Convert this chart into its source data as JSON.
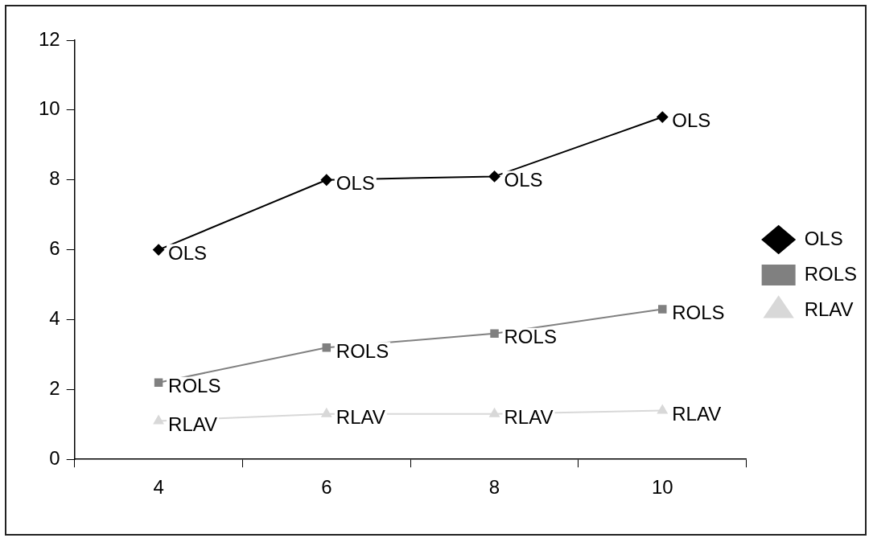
{
  "chart_data": {
    "type": "line",
    "categories": [
      "4",
      "6",
      "8",
      "10"
    ],
    "series": [
      {
        "name": "OLS",
        "color": "#000000",
        "marker": "diamond",
        "values": [
          6,
          8,
          8.1,
          9.8
        ]
      },
      {
        "name": "ROLS",
        "color": "#808080",
        "marker": "square",
        "values": [
          2.2,
          3.2,
          3.6,
          4.3
        ]
      },
      {
        "name": "RLAV",
        "color": "#d8d8d8",
        "marker": "triangle",
        "values": [
          1.1,
          1.3,
          1.3,
          1.4
        ]
      }
    ],
    "ylim": [
      0,
      12
    ],
    "yticks": [
      0,
      2,
      4,
      6,
      8,
      10,
      12
    ],
    "grid": false,
    "legend": "right",
    "line_style": "solid",
    "annotations": [
      {
        "text": "OLS",
        "x": "4",
        "y": 6
      },
      {
        "text": "OLS",
        "x": "6",
        "y": 8
      },
      {
        "text": "OLS",
        "x": "8",
        "y": 8.1
      },
      {
        "text": "OLS",
        "x": "10",
        "y": 9.8
      },
      {
        "text": "ROLS",
        "x": "4",
        "y": 2.2
      },
      {
        "text": "ROLS",
        "x": "6",
        "y": 3.2
      },
      {
        "text": "ROLS",
        "x": "8",
        "y": 3.6
      },
      {
        "text": "ROLS",
        "x": "10",
        "y": 4.3
      },
      {
        "text": "RLAV",
        "x": "4",
        "y": 1.1
      },
      {
        "text": "RLAV",
        "x": "6",
        "y": 1.3
      },
      {
        "text": "RLAV",
        "x": "8",
        "y": 1.3
      },
      {
        "text": "RLAV",
        "x": "10",
        "y": 1.4
      }
    ]
  }
}
